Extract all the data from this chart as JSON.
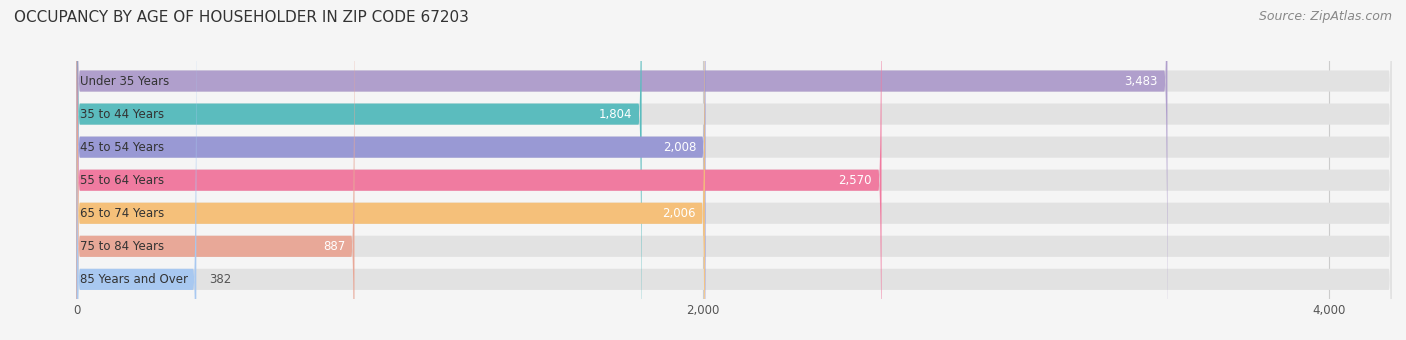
{
  "title": "OCCUPANCY BY AGE OF HOUSEHOLDER IN ZIP CODE 67203",
  "source": "Source: ZipAtlas.com",
  "categories": [
    "Under 35 Years",
    "35 to 44 Years",
    "45 to 54 Years",
    "55 to 64 Years",
    "65 to 74 Years",
    "75 to 84 Years",
    "85 Years and Over"
  ],
  "values": [
    3483,
    1804,
    2008,
    2570,
    2006,
    887,
    382
  ],
  "bar_colors": [
    "#b09fcc",
    "#5bbcbe",
    "#9999d4",
    "#f07ba0",
    "#f5c07a",
    "#e8a898",
    "#a8c8f0"
  ],
  "xlim": [
    -200,
    4200
  ],
  "xticks": [
    0,
    2000,
    4000
  ],
  "title_fontsize": 11,
  "source_fontsize": 9,
  "label_fontsize": 8.5,
  "value_fontsize": 8.5,
  "bg_color": "#f0f0f0",
  "bar_bg_color": "#e8e8e8",
  "value_color_inside": "#ffffff",
  "value_color_outside": "#555555"
}
